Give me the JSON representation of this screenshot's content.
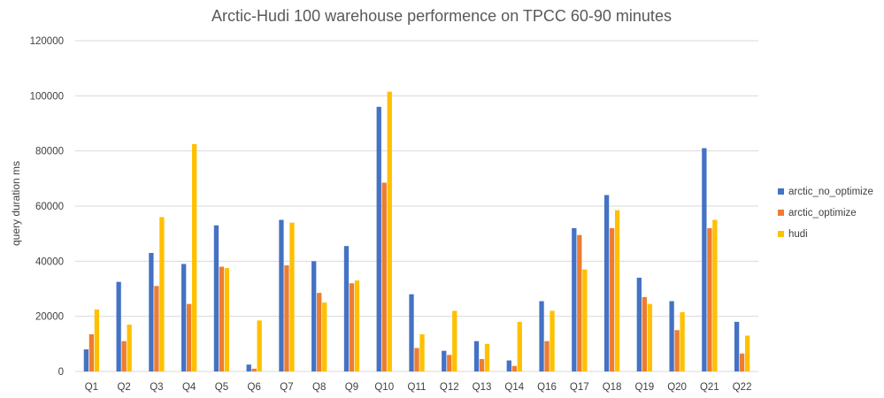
{
  "chart_data": {
    "type": "bar",
    "title": "Arctic-Hudi 100 warehouse performence on TPCC 60-90 minutes",
    "xlabel": "",
    "ylabel": "query duration ms",
    "ylim": [
      0,
      120000
    ],
    "yticks": [
      0,
      20000,
      40000,
      60000,
      80000,
      100000,
      120000
    ],
    "grid": true,
    "legend_position": "right",
    "categories": [
      "Q1",
      "Q2",
      "Q3",
      "Q4",
      "Q5",
      "Q6",
      "Q7",
      "Q8",
      "Q9",
      "Q10",
      "Q11",
      "Q12",
      "Q13",
      "Q14",
      "Q16",
      "Q17",
      "Q18",
      "Q19",
      "Q20",
      "Q21",
      "Q22"
    ],
    "series": [
      {
        "name": "arctic_no_optimize",
        "color": "#4472c4",
        "values": [
          8000,
          32500,
          43000,
          39000,
          53000,
          2500,
          55000,
          40000,
          45500,
          96000,
          28000,
          7500,
          11000,
          4000,
          25500,
          52000,
          64000,
          34000,
          25500,
          81000,
          18000
        ]
      },
      {
        "name": "arctic_optimize",
        "color": "#ed7d31",
        "values": [
          13500,
          11000,
          31000,
          24500,
          38000,
          1000,
          38500,
          28500,
          32000,
          68500,
          8500,
          6000,
          4500,
          2000,
          11000,
          49500,
          52000,
          27000,
          15000,
          52000,
          6500
        ]
      },
      {
        "name": "hudi",
        "color": "#ffc000",
        "values": [
          22500,
          17000,
          56000,
          82500,
          37500,
          18500,
          54000,
          25000,
          33000,
          101500,
          13500,
          22000,
          10000,
          18000,
          22000,
          37000,
          58500,
          24500,
          21500,
          55000,
          13000
        ]
      }
    ]
  }
}
